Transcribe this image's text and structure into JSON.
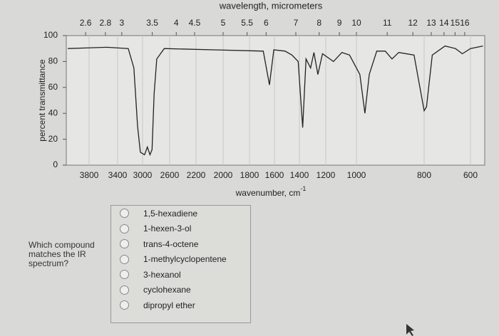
{
  "chart_data": {
    "type": "line",
    "x2_label": "wavelength, micrometers",
    "y_label": "percent transmittance",
    "x_label": "wavenumber, cm",
    "x_label_sup": "-1",
    "xlim": [
      4100,
      560
    ],
    "xticks": [
      3800,
      3400,
      3000,
      2600,
      2200,
      2000,
      1800,
      1600,
      1400,
      1200,
      1000,
      800,
      600
    ],
    "x2ticks": [
      2.6,
      2.8,
      3,
      3.5,
      4,
      4.5,
      5,
      5.5,
      6,
      7,
      8,
      9,
      10,
      11,
      12,
      13,
      14,
      15,
      16
    ],
    "ylim": [
      0,
      100
    ],
    "yticks": [
      0,
      20,
      40,
      60,
      80,
      100
    ],
    "grid": true,
    "x": [
      4080,
      3550,
      3230,
      3140,
      3080,
      3035,
      2970,
      2930,
      2890,
      2860,
      2830,
      2790,
      2680,
      2070,
      1690,
      1640,
      1605,
      1515,
      1460,
      1410,
      1375,
      1350,
      1315,
      1290,
      1260,
      1225,
      1150,
      1095,
      1045,
      990,
      975,
      962,
      940,
      915,
      895,
      875,
      830,
      800,
      790,
      765,
      710,
      665,
      635,
      600,
      565
    ],
    "series": [
      {
        "color": "#222222",
        "values": [
          90,
          91,
          90,
          75,
          30,
          10,
          8,
          14,
          8,
          12,
          55,
          82,
          90,
          89,
          88,
          62,
          89,
          88,
          85,
          80,
          29,
          82,
          75,
          87,
          70,
          86,
          80,
          87,
          85,
          70,
          40,
          70,
          88,
          88,
          82,
          87,
          85,
          42,
          45,
          85,
          92,
          90,
          86,
          90,
          92
        ]
      }
    ]
  },
  "question": {
    "prompt": "Which compound matches the IR spectrum?",
    "options": [
      "1,5-hexadiene",
      "1-hexen-3-ol",
      "trans-4-octene",
      "1-methylcyclopentene",
      "3-hexanol",
      "cyclohexane",
      "dipropyl ether"
    ]
  }
}
